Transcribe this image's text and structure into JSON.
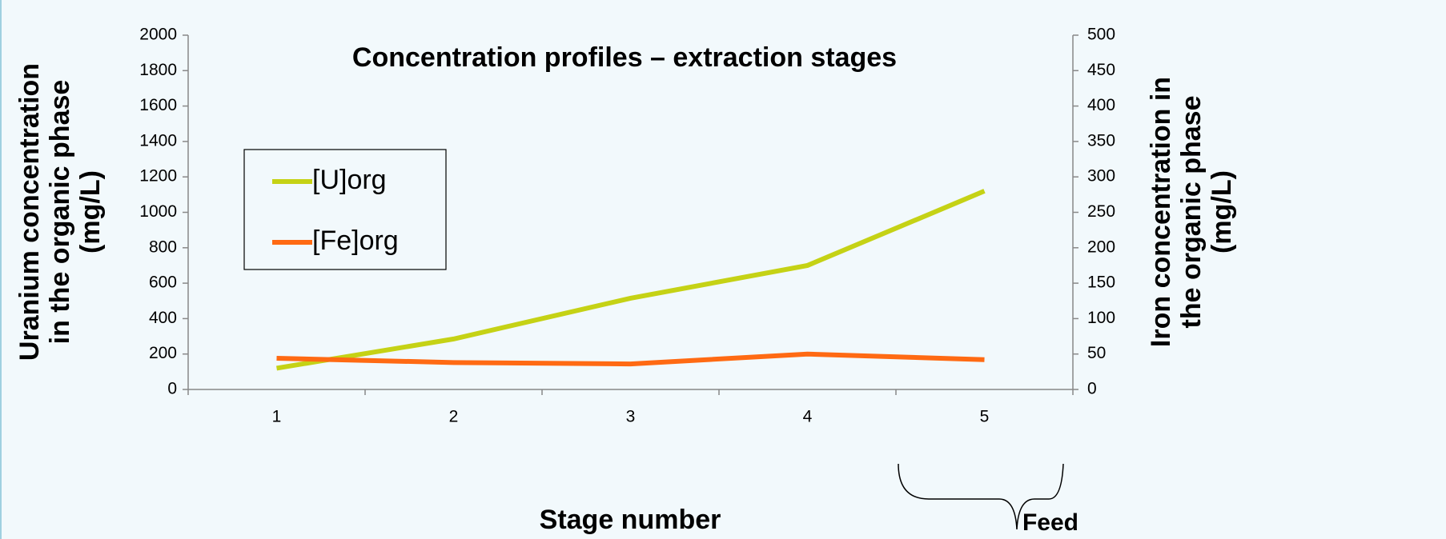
{
  "chart_data": {
    "type": "line",
    "title": "Concentration profiles – extraction stages",
    "x_label": "Stage number",
    "y_label": [
      "Uranium concentration",
      "in the organic phase",
      "(mg/L)"
    ],
    "y2_label": [
      "Iron concentration in",
      "the organic phase",
      "(mg/L)"
    ],
    "annotation": "Feed",
    "categories": [
      "1",
      "2",
      "3",
      "4",
      "5"
    ],
    "series": [
      {
        "name": "[U]org",
        "color": "#c5d215",
        "values": [
          120,
          285,
          515,
          700,
          1120
        ]
      },
      {
        "name": "[Fe]org",
        "color": "#ff6a13",
        "values": [
          44,
          38,
          36,
          50,
          42
        ],
        "axis": "y2"
      }
    ],
    "ylim": [
      0,
      2000
    ],
    "yticks": [
      0,
      200,
      400,
      600,
      800,
      1000,
      1200,
      1400,
      1600,
      1800,
      2000
    ],
    "y2lim": [
      0,
      500
    ],
    "y2ticks": [
      0,
      50,
      100,
      150,
      200,
      250,
      300,
      350,
      400,
      450,
      500
    ],
    "legend": "upper left"
  }
}
